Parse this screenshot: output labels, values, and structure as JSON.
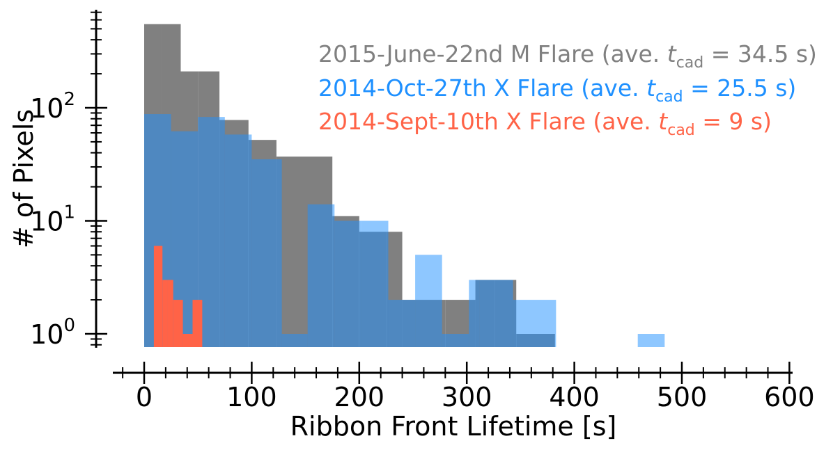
{
  "chart_data": {
    "type": "bar",
    "histogram": true,
    "xlabel": "Ribbon Front Lifetime [s]",
    "ylabel": "# of Pixels",
    "xlim": [
      -35,
      605
    ],
    "ylim": [
      0.75,
      700
    ],
    "yscale": "log",
    "grid": false,
    "legend_position": "top-right",
    "x_ticks": [
      0,
      100,
      200,
      300,
      400,
      500,
      600
    ],
    "y_ticks": [
      {
        "value": 1,
        "base": "10",
        "exp": "0"
      },
      {
        "value": 10,
        "base": "10",
        "exp": "1"
      },
      {
        "value": 100,
        "base": "10",
        "exp": "2"
      }
    ],
    "series": [
      {
        "name": "2015-June-22nd M Flare",
        "legend_suffix": "34.5 s)",
        "color": "#808080",
        "opacity": 1.0,
        "bins": [
          {
            "x0": 0,
            "x1": 16.5,
            "count": 550
          },
          {
            "x0": 16.5,
            "x1": 34,
            "count": 550
          },
          {
            "x0": 34,
            "x1": 50,
            "count": 210
          },
          {
            "x0": 50,
            "x1": 70,
            "count": 210
          },
          {
            "x0": 70,
            "x1": 97,
            "count": 78
          },
          {
            "x0": 97,
            "x1": 123,
            "count": 52
          },
          {
            "x0": 123,
            "x1": 175,
            "count": 37
          },
          {
            "x0": 175,
            "x1": 200,
            "count": 11
          },
          {
            "x0": 200,
            "x1": 225,
            "count": 8
          },
          {
            "x0": 225,
            "x1": 240,
            "count": 8
          },
          {
            "x0": 240,
            "x1": 280,
            "count": 2
          },
          {
            "x0": 280,
            "x1": 308,
            "count": 2
          },
          {
            "x0": 308,
            "x1": 326,
            "count": 3
          },
          {
            "x0": 326,
            "x1": 346,
            "count": 3
          },
          {
            "x0": 346,
            "x1": 382,
            "count": 1
          }
        ]
      },
      {
        "name": "2014-Oct-27th X Flare",
        "legend_suffix": "25.5 s)",
        "color": "#1e90ff",
        "opacity": 0.5,
        "bins": [
          {
            "x0": 0,
            "x1": 25,
            "count": 88
          },
          {
            "x0": 25,
            "x1": 50,
            "count": 62
          },
          {
            "x0": 50,
            "x1": 75,
            "count": 83
          },
          {
            "x0": 75,
            "x1": 100,
            "count": 58
          },
          {
            "x0": 100,
            "x1": 128,
            "count": 35
          },
          {
            "x0": 128,
            "x1": 152,
            "count": 1
          },
          {
            "x0": 152,
            "x1": 177,
            "count": 14
          },
          {
            "x0": 177,
            "x1": 202,
            "count": 10
          },
          {
            "x0": 202,
            "x1": 227,
            "count": 10
          },
          {
            "x0": 227,
            "x1": 252,
            "count": 2
          },
          {
            "x0": 252,
            "x1": 277,
            "count": 5
          },
          {
            "x0": 277,
            "x1": 302,
            "count": 1
          },
          {
            "x0": 302,
            "x1": 312,
            "count": 3
          },
          {
            "x0": 312,
            "x1": 343,
            "count": 3
          },
          {
            "x0": 343,
            "x1": 383,
            "count": 2
          },
          {
            "x0": 459,
            "x1": 484,
            "count": 1
          }
        ]
      },
      {
        "name": "2014-Sept-10th X Flare",
        "legend_suffix": "9 s)",
        "color": "#ff6347",
        "opacity": 1.0,
        "bins": [
          {
            "x0": 9,
            "x1": 17,
            "count": 6
          },
          {
            "x0": 17,
            "x1": 22,
            "count": 3
          },
          {
            "x0": 22,
            "x1": 27,
            "count": 3
          },
          {
            "x0": 27,
            "x1": 36,
            "count": 2
          },
          {
            "x0": 36,
            "x1": 45,
            "count": 1
          },
          {
            "x0": 45,
            "x1": 54,
            "count": 2
          }
        ]
      }
    ]
  },
  "legend": {
    "prefix": " (ave. ",
    "t": "t",
    "sub": "cad",
    "equals": " = "
  }
}
